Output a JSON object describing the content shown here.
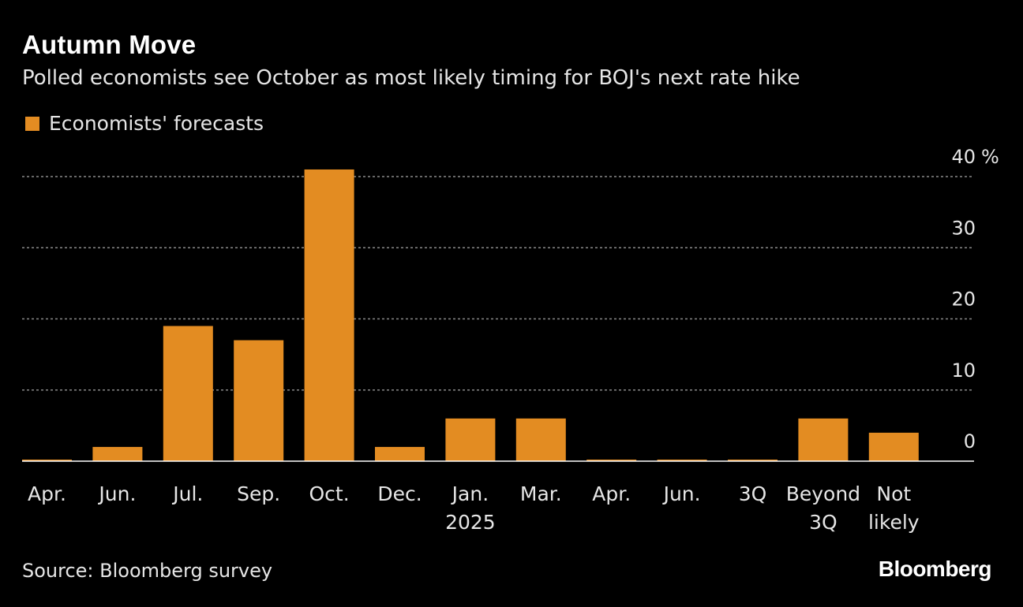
{
  "header": {
    "title": "Autumn Move",
    "subtitle": "Polled economists see October as most likely timing for BOJ's next rate hike"
  },
  "legend": {
    "label": "Economists' forecasts"
  },
  "footer": {
    "source": "Source: Bloomberg survey",
    "brand": "Bloomberg"
  },
  "colors": {
    "bar": "#e38c22",
    "grid": "#8a8a8a",
    "axis": "#ffffff",
    "background": "#000000"
  },
  "chart_data": {
    "type": "bar",
    "title": "Autumn Move",
    "subtitle": "Polled economists see October as most likely timing for BOJ's next rate hike",
    "xlabel": "",
    "ylabel": "",
    "unit": "%",
    "ylim": [
      0,
      40
    ],
    "yticks": [
      "0",
      "10",
      "20",
      "30",
      "40 %"
    ],
    "grid": true,
    "legend": "top-left",
    "categories": [
      [
        "Apr."
      ],
      [
        "Jun."
      ],
      [
        "Jul."
      ],
      [
        "Sep."
      ],
      [
        "Oct."
      ],
      [
        "Dec."
      ],
      [
        "Jan.",
        "2025"
      ],
      [
        "Mar."
      ],
      [
        "Apr."
      ],
      [
        "Jun."
      ],
      [
        "3Q"
      ],
      [
        "Beyond",
        "3Q"
      ],
      [
        "Not",
        "likely"
      ]
    ],
    "series": [
      {
        "name": "Economists' forecasts",
        "values": [
          0,
          2,
          19,
          17,
          41,
          2,
          6,
          6,
          0,
          0,
          0,
          6,
          4
        ]
      }
    ]
  }
}
